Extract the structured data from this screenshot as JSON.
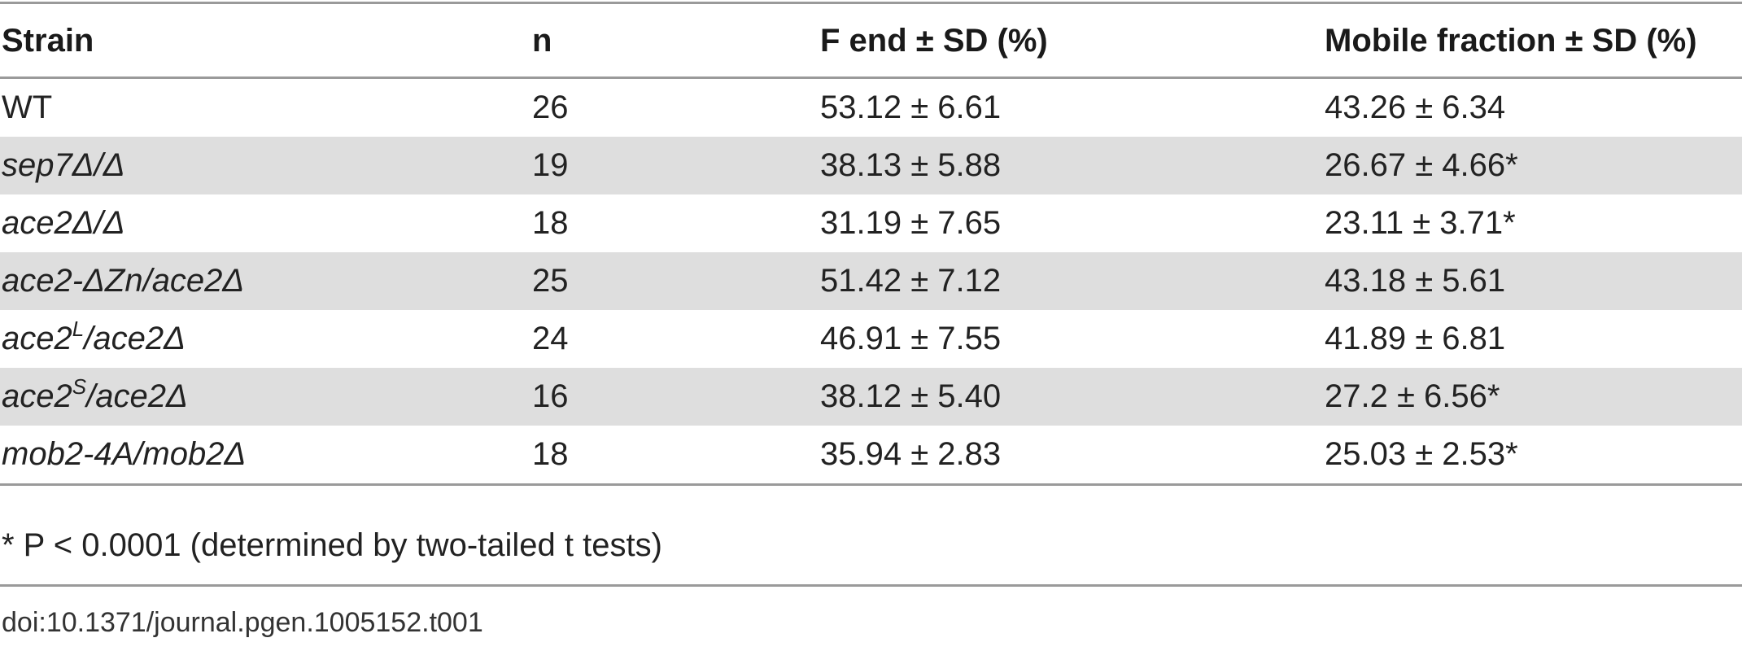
{
  "table": {
    "headers": [
      "Strain",
      "n",
      "F end ± SD (%)",
      "Mobile fraction ± SD (%)"
    ],
    "rows": [
      {
        "strain_pre": "WT",
        "strain_sup": "",
        "strain_post": "",
        "strain_italic": false,
        "n": "26",
        "f_end": "53.12 ± 6.61",
        "mobile": "43.26 ± 6.34"
      },
      {
        "strain_pre": "sep7",
        "strain_sup": "",
        "strain_post": "Δ/Δ",
        "strain_italic": true,
        "n": "19",
        "f_end": "38.13 ± 5.88",
        "mobile": "26.67 ± 4.66*"
      },
      {
        "strain_pre": "ace2",
        "strain_sup": "",
        "strain_post": "Δ/Δ",
        "strain_italic": true,
        "n": "18",
        "f_end": "31.19 ± 7.65",
        "mobile": "23.11 ± 3.71*"
      },
      {
        "strain_pre": "ace2-ΔZn/ace2Δ",
        "strain_sup": "",
        "strain_post": "",
        "strain_italic": true,
        "n": "25",
        "f_end": "51.42 ± 7.12",
        "mobile": "43.18 ± 5.61"
      },
      {
        "strain_pre": "ace2",
        "strain_sup": "L",
        "strain_post": "/ace2Δ",
        "strain_italic": true,
        "n": "24",
        "f_end": "46.91 ± 7.55",
        "mobile": "41.89 ± 6.81"
      },
      {
        "strain_pre": "ace2",
        "strain_sup": "S",
        "strain_post": "/ace2Δ",
        "strain_italic": true,
        "n": "16",
        "f_end": "38.12 ± 5.40",
        "mobile": "27.2 ± 6.56*"
      },
      {
        "strain_pre": "mob2-4A/mob2Δ",
        "strain_sup": "",
        "strain_post": "",
        "strain_italic": true,
        "n": "18",
        "f_end": "35.94 ± 2.83",
        "mobile": "25.03 ± 2.53*"
      }
    ]
  },
  "footnote": "* P < 0.0001 (determined by two-tailed t tests)",
  "doi": "doi:10.1371/journal.pgen.1005152.t001",
  "colors": {
    "rule": "#9a9a9a",
    "shaded_row": "#dedede",
    "text": "#222222"
  }
}
